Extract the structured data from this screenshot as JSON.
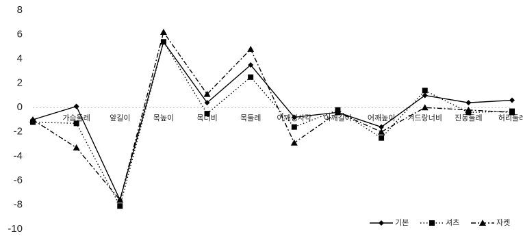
{
  "chart_data": {
    "type": "line",
    "categories": [
      null,
      "가슴둘레",
      "앞길이",
      "목높이",
      "목너비",
      "목둘레",
      "어깨경사각",
      "어깨길이",
      "어깨높이",
      "겨드랑너비",
      "진동둘레",
      "허리둘레"
    ],
    "series": [
      {
        "name": "기본",
        "color": "#000000",
        "dash": "solid",
        "marker": "diamond",
        "values": [
          -1.0,
          0.1,
          -7.6,
          5.4,
          0.4,
          3.5,
          -0.8,
          -0.4,
          -1.6,
          1.0,
          0.4,
          0.6
        ]
      },
      {
        "name": "셔츠",
        "color": "#000000",
        "dash": "dotted",
        "marker": "square",
        "values": [
          -1.2,
          -1.3,
          -8.1,
          5.4,
          -0.5,
          2.5,
          -1.6,
          -0.2,
          -2.5,
          1.4,
          -0.4,
          -0.3
        ]
      },
      {
        "name": "자켓",
        "color": "#000000",
        "dash": "dashdot",
        "marker": "triangle",
        "values": [
          -1.0,
          -3.3,
          -7.6,
          6.2,
          1.1,
          4.8,
          -2.9,
          -0.4,
          -2.0,
          0.0,
          -0.2,
          -0.4
        ]
      }
    ],
    "ylim": [
      -10,
      8
    ],
    "yticks": [
      8,
      6,
      4,
      2,
      0,
      -2,
      -4,
      -6,
      -8,
      -10
    ],
    "legend": "bottom-right"
  }
}
